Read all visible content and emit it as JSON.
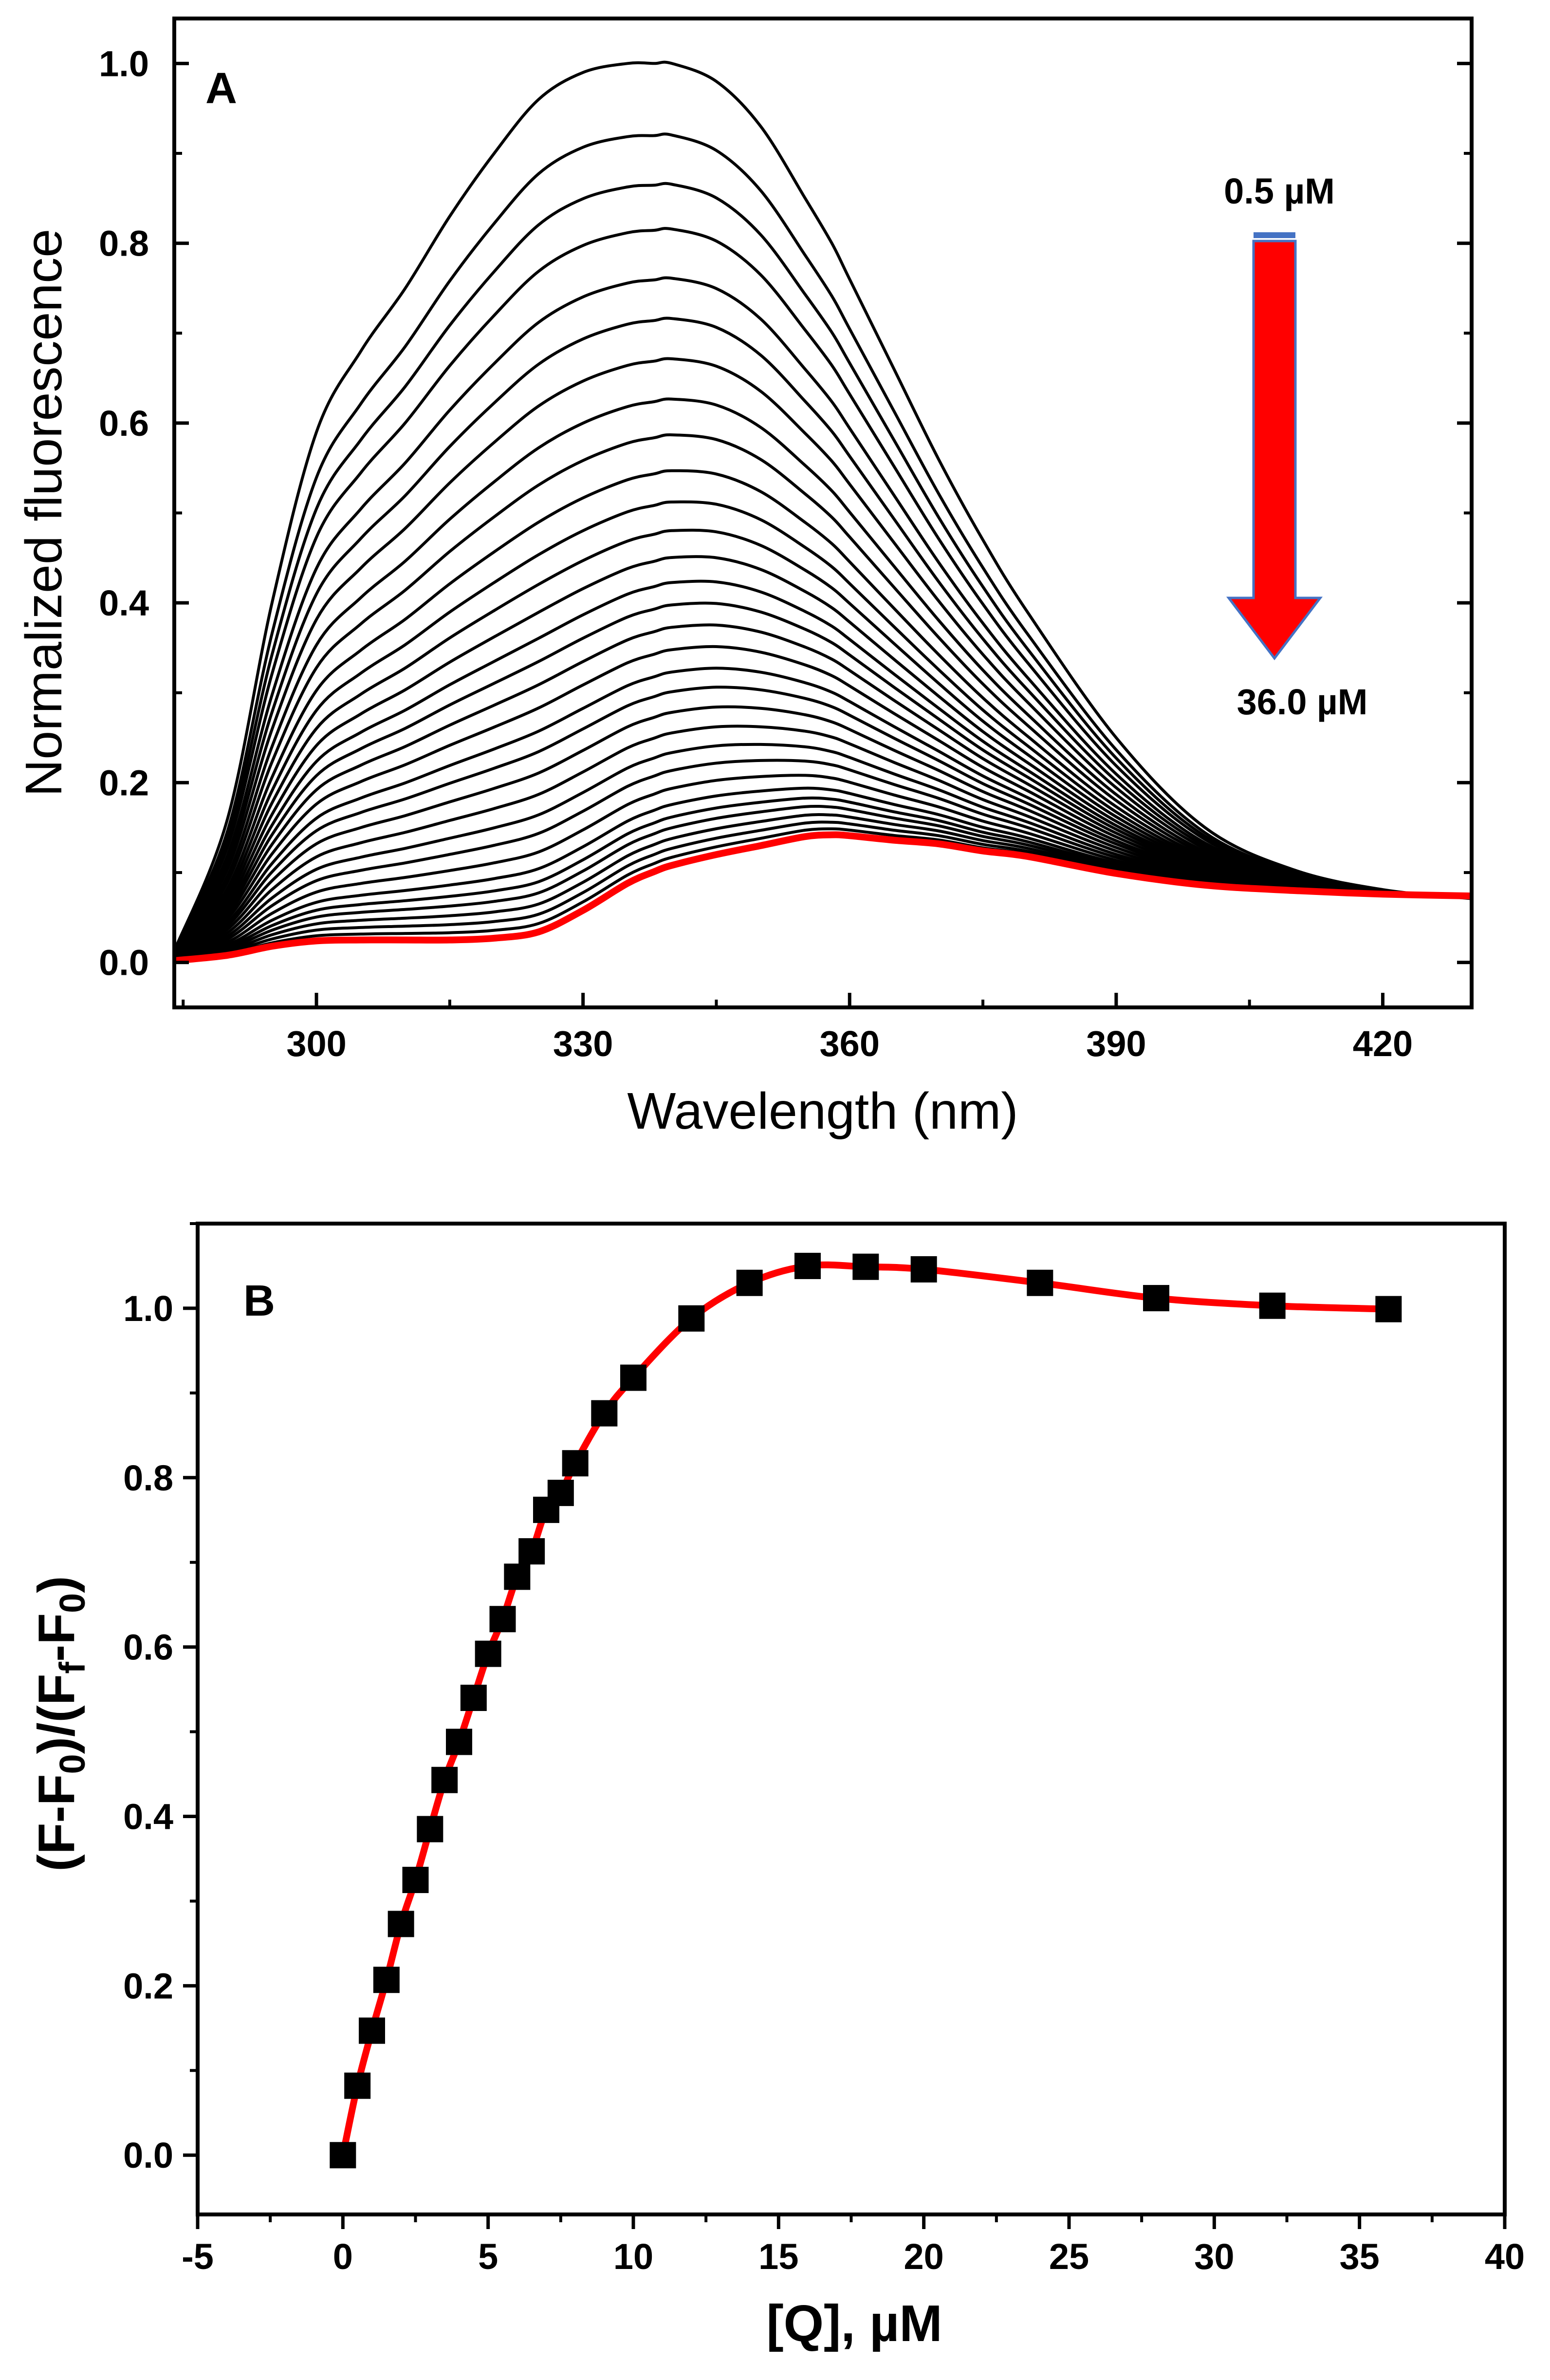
{
  "chart_data": [
    {
      "type": "line",
      "panel_label": "A",
      "xlabel": "Wavelength (nm)",
      "ylabel": "Normalized fluorescence",
      "xlim": [
        284,
        430
      ],
      "ylim": [
        -0.05,
        1.05
      ],
      "xticks": [
        300,
        330,
        360,
        390,
        420
      ],
      "xtick_labels": [
        "300",
        "330",
        "360",
        "390",
        "420"
      ],
      "yticks": [
        0.0,
        0.2,
        0.4,
        0.6,
        0.8,
        1.0
      ],
      "ytick_labels": [
        "0.0",
        "0.2",
        "0.4",
        "0.6",
        "0.8",
        "1.0"
      ],
      "x": [
        284,
        290,
        295,
        300,
        305,
        310,
        315,
        320,
        325,
        330,
        335,
        338,
        340,
        345,
        350,
        355,
        358,
        360,
        365,
        370,
        375,
        380,
        390,
        400,
        410,
        420,
        430
      ],
      "shape_first": [
        0.013,
        0.16,
        0.4,
        0.59,
        0.68,
        0.75,
        0.83,
        0.9,
        0.96,
        0.99,
        1.0,
        1.0,
        1.0,
        0.98,
        0.93,
        0.85,
        0.8,
        0.76,
        0.66,
        0.56,
        0.47,
        0.39,
        0.25,
        0.15,
        0.103,
        0.081,
        0.071
      ],
      "shape_last": [
        0.002,
        0.008,
        0.018,
        0.024,
        0.025,
        0.025,
        0.025,
        0.027,
        0.034,
        0.058,
        0.088,
        0.101,
        0.108,
        0.12,
        0.13,
        0.14,
        0.142,
        0.141,
        0.136,
        0.132,
        0.124,
        0.118,
        0.099,
        0.086,
        0.08,
        0.076,
        0.074
      ],
      "peak_values": [
        1.0,
        0.92,
        0.865,
        0.815,
        0.76,
        0.715,
        0.67,
        0.625,
        0.585,
        0.545,
        0.51,
        0.478,
        0.448,
        0.42,
        0.395,
        0.37,
        0.345,
        0.32,
        0.298,
        0.275,
        0.252,
        0.23,
        0.21,
        0.19,
        0.172,
        0.158,
        0.146,
        0.134,
        0.123,
        0.113,
        0.104
      ],
      "series_last": {
        "name": "36.0 µM",
        "color": "#ff0000"
      },
      "series_color": "#000000",
      "arrow": {
        "color": "#ff0000",
        "from_label": "0.5 µM",
        "to_label": "36.0 µM"
      }
    },
    {
      "type": "scatter",
      "panel_label": "B",
      "xlabel": "[Q], µM",
      "ylabel_parts": [
        "(F-F",
        "0",
        ")/(F",
        "f",
        "-F",
        "0",
        ")"
      ],
      "xlim": [
        -5,
        40
      ],
      "ylim": [
        -0.07,
        1.1
      ],
      "xticks": [
        -5,
        0,
        5,
        10,
        15,
        20,
        25,
        30,
        35,
        40
      ],
      "xtick_labels": [
        "-5",
        "0",
        "5",
        "10",
        "15",
        "20",
        "25",
        "30",
        "35",
        "40"
      ],
      "yticks": [
        0.0,
        0.2,
        0.4,
        0.6,
        0.8,
        1.0
      ],
      "ytick_labels": [
        "0.0",
        "0.2",
        "0.4",
        "0.6",
        "0.8",
        "1.0"
      ],
      "x": [
        0,
        0.5,
        1,
        1.5,
        2,
        2.5,
        3,
        3.5,
        4,
        4.5,
        5,
        5.5,
        6,
        6.5,
        7,
        7.5,
        8,
        9,
        10,
        12,
        14,
        16,
        18,
        20,
        24,
        28,
        32,
        36
      ],
      "y": [
        0.0,
        0.082,
        0.147,
        0.207,
        0.273,
        0.325,
        0.385,
        0.443,
        0.488,
        0.54,
        0.592,
        0.633,
        0.683,
        0.713,
        0.762,
        0.782,
        0.817,
        0.876,
        0.918,
        0.988,
        1.03,
        1.05,
        1.049,
        1.046,
        1.03,
        1.012,
        1.003,
        0.999
      ],
      "marker_color": "#000000",
      "line_color": "#ff0000"
    }
  ]
}
